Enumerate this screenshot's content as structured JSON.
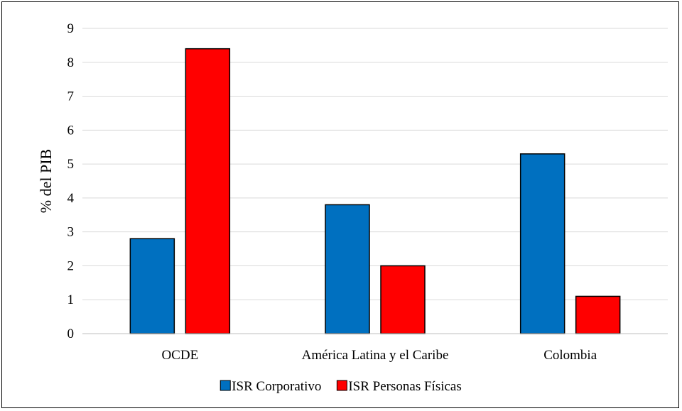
{
  "chart_data": {
    "type": "bar",
    "categories": [
      "OCDE",
      "América Latina y el Caribe",
      "Colombia"
    ],
    "series": [
      {
        "name": "ISR Corporativo",
        "values": [
          2.8,
          3.8,
          5.3
        ],
        "color": "#0070c0"
      },
      {
        "name": "ISR Personas Físicas",
        "values": [
          8.4,
          2.0,
          1.1
        ],
        "color": "#ff0000"
      }
    ],
    "ylabel": "% del PIB",
    "ylim": [
      0,
      9
    ],
    "yticks": [
      "0",
      "1",
      "2",
      "3",
      "4",
      "5",
      "6",
      "7",
      "8",
      "9"
    ],
    "grid": true,
    "legend": "bottom"
  }
}
